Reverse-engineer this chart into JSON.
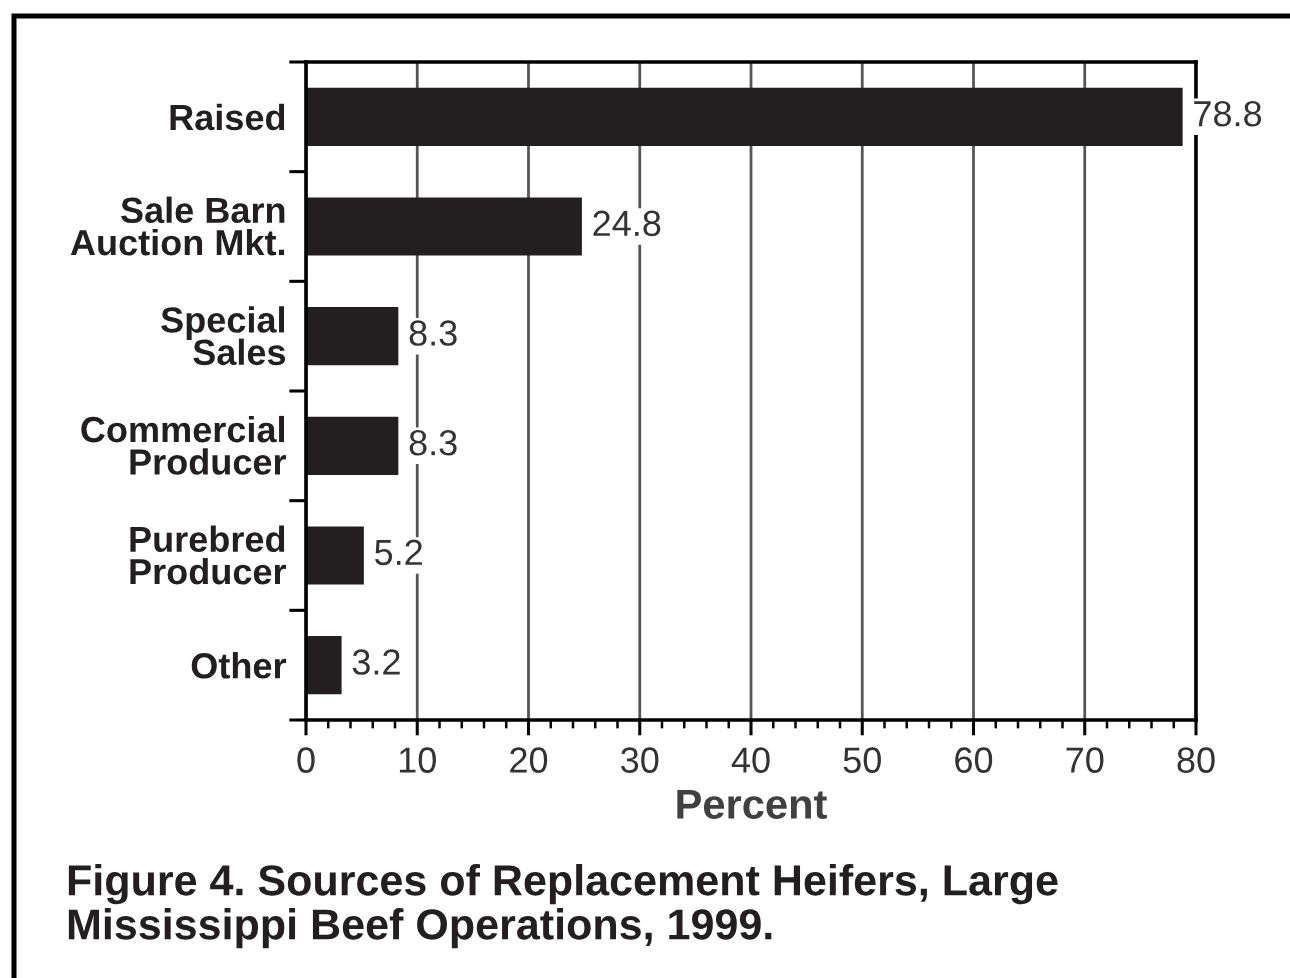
{
  "chart_data": {
    "type": "bar",
    "orientation": "horizontal",
    "title": "Figure 4. Sources of Replacement Heifers, Large Mississippi Beef Operations, 1999.",
    "xlabel": "Percent",
    "categories": [
      "Raised",
      "Sale Barn\nAuction Mkt.",
      "Special\nSales",
      "Commercial\nProducer",
      "Purebred\nProducer",
      "Other"
    ],
    "values": [
      78.8,
      24.8,
      8.3,
      8.3,
      5.2,
      3.2
    ],
    "color": "#231f20",
    "data_labels": true,
    "xlim": [
      0,
      80
    ],
    "xticks": [
      0,
      {
        "value": 2,
        "label": null
      },
      {
        "value": 4,
        "label": null
      },
      {
        "value": 6,
        "label": null
      },
      {
        "value": 8,
        "label": null
      },
      10,
      {
        "value": 12,
        "label": null
      },
      {
        "value": 14,
        "label": null
      },
      {
        "value": 16,
        "label": null
      },
      {
        "value": 18,
        "label": null
      },
      20,
      {
        "value": 22,
        "label": null
      },
      {
        "value": 24,
        "label": null
      },
      {
        "value": 26,
        "label": null
      },
      {
        "value": 28,
        "label": null
      },
      30,
      {
        "value": 32,
        "label": null
      },
      {
        "value": 34,
        "label": null
      },
      {
        "value": 36,
        "label": null
      },
      {
        "value": 38,
        "label": null
      },
      40,
      {
        "value": 42,
        "label": null
      },
      {
        "value": 44,
        "label": null
      },
      {
        "value": 46,
        "label": null
      },
      {
        "value": 48,
        "label": null
      },
      50,
      {
        "value": 52,
        "label": null
      },
      {
        "value": 54,
        "label": null
      },
      {
        "value": 56,
        "label": null
      },
      {
        "value": 58,
        "label": null
      },
      60,
      {
        "value": 62,
        "label": null
      },
      {
        "value": 64,
        "label": null
      },
      {
        "value": 66,
        "label": null
      },
      {
        "value": 68,
        "label": null
      },
      70,
      {
        "value": 72,
        "label": null
      },
      {
        "value": 74,
        "label": null
      },
      {
        "value": 76,
        "label": null
      },
      {
        "value": 78,
        "label": null
      },
      80
    ],
    "grid": "x"
  }
}
